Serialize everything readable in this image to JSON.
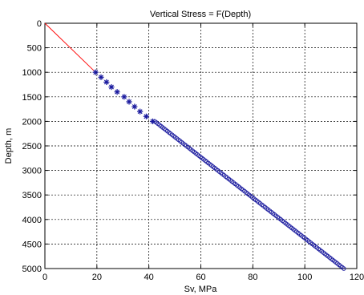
{
  "chart_data": {
    "type": "line",
    "title": "Vertical Stress = F(Depth)",
    "xlabel": "Sv, MPa",
    "ylabel": "Depth, m",
    "xlim": [
      0,
      120
    ],
    "ylim": [
      0,
      5000
    ],
    "y_reversed": true,
    "grid": true,
    "x_ticks": [
      0,
      20,
      40,
      60,
      80,
      100,
      120
    ],
    "y_ticks": [
      0,
      500,
      1000,
      1500,
      2000,
      2500,
      3000,
      3500,
      4000,
      4500,
      5000
    ],
    "series": [
      {
        "style": "line",
        "color": "#ff0000",
        "points": [
          [
            0,
            0
          ],
          [
            19.5,
            1000
          ]
        ]
      },
      {
        "style": "star-marker",
        "color": "#1a1a9e",
        "points": [
          [
            19.5,
            1000
          ],
          [
            21.6,
            1100
          ],
          [
            23.7,
            1200
          ],
          [
            25.6,
            1300
          ],
          [
            27.8,
            1400
          ],
          [
            30.5,
            1500
          ],
          [
            32.4,
            1600
          ],
          [
            34.5,
            1700
          ],
          [
            36.6,
            1800
          ],
          [
            39.0,
            1900
          ],
          [
            41.5,
            2000
          ]
        ]
      },
      {
        "style": "circle-marker",
        "color": "#1a1a9e",
        "x_start": 42.3,
        "x_end": 115.0,
        "y_start": 2000,
        "y_end": 5000,
        "count": 121
      }
    ]
  }
}
